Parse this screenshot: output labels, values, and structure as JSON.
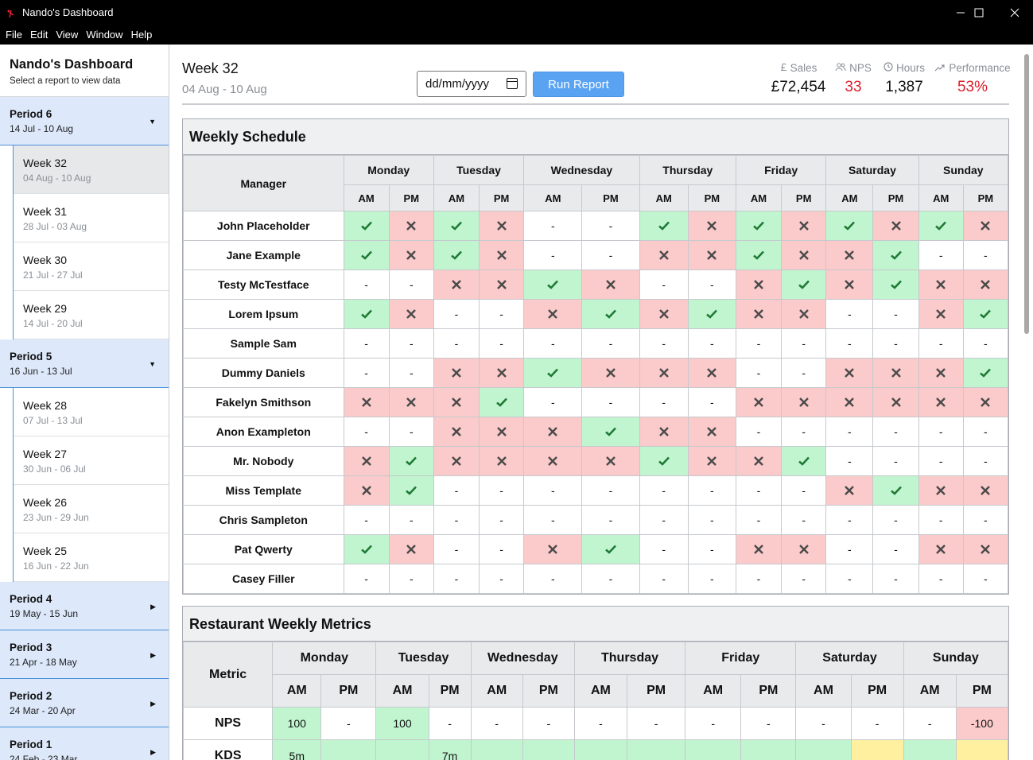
{
  "app": {
    "title": "Nando's Dashboard",
    "menu": [
      "File",
      "Edit",
      "View",
      "Window",
      "Help"
    ]
  },
  "sidebar": {
    "title": "Nando's Dashboard",
    "subtitle": "Select a report to view data",
    "periods": [
      {
        "name": "Period 6",
        "dates": "14 Jul - 10 Aug",
        "expanded": true,
        "weeks": [
          {
            "name": "Week 32",
            "dates": "04 Aug - 10 Aug",
            "active": true
          },
          {
            "name": "Week 31",
            "dates": "28 Jul - 03 Aug"
          },
          {
            "name": "Week 30",
            "dates": "21 Jul - 27 Jul"
          },
          {
            "name": "Week 29",
            "dates": "14 Jul - 20 Jul"
          }
        ]
      },
      {
        "name": "Period 5",
        "dates": "16 Jun - 13 Jul",
        "expanded": true,
        "weeks": [
          {
            "name": "Week 28",
            "dates": "07 Jul - 13 Jul"
          },
          {
            "name": "Week 27",
            "dates": "30 Jun - 06 Jul"
          },
          {
            "name": "Week 26",
            "dates": "23 Jun - 29 Jun"
          },
          {
            "name": "Week 25",
            "dates": "16 Jun - 22 Jun"
          }
        ]
      },
      {
        "name": "Period 4",
        "dates": "19 May - 15 Jun",
        "expanded": false,
        "weeks": []
      },
      {
        "name": "Period 3",
        "dates": "21 Apr - 18 May",
        "expanded": false,
        "weeks": []
      },
      {
        "name": "Period 2",
        "dates": "24 Mar - 20 Apr",
        "expanded": false,
        "weeks": []
      },
      {
        "name": "Period 1",
        "dates": "24 Feb - 23 Mar",
        "expanded": false,
        "weeks": []
      }
    ]
  },
  "header": {
    "week": "Week 32",
    "range": "04 Aug - 10 Aug",
    "date_placeholder": "dd/mm/yyyy",
    "run_label": "Run Report",
    "stats": [
      {
        "label": "Sales",
        "value": "£72,454",
        "color": "#111111",
        "icon": "pound-icon"
      },
      {
        "label": "NPS",
        "value": "33",
        "color": "#dc1f2b",
        "icon": "users-icon"
      },
      {
        "label": "Hours",
        "value": "1,387",
        "color": "#111111",
        "icon": "clock-icon"
      },
      {
        "label": "Performance",
        "value": "53%",
        "color": "#dc1f2b",
        "icon": "trend-icon"
      }
    ]
  },
  "schedule": {
    "title": "Weekly Schedule",
    "manager_header": "Manager",
    "days": [
      "Monday",
      "Tuesday",
      "Wednesday",
      "Thursday",
      "Friday",
      "Saturday",
      "Sunday"
    ],
    "am": "AM",
    "pm": "PM",
    "dash": "-",
    "rows": [
      {
        "name": "John Placeholder",
        "cells": [
          "y",
          "n",
          "y",
          "n",
          "-",
          "-",
          "y",
          "n",
          "y",
          "n",
          "y",
          "n",
          "y",
          "n"
        ]
      },
      {
        "name": "Jane Example",
        "cells": [
          "y",
          "n",
          "y",
          "n",
          "-",
          "-",
          "n",
          "n",
          "y",
          "n",
          "n",
          "y",
          "-",
          "-"
        ]
      },
      {
        "name": "Testy McTestface",
        "cells": [
          "-",
          "-",
          "n",
          "n",
          "y",
          "n",
          "-",
          "-",
          "n",
          "y",
          "n",
          "y",
          "n",
          "n"
        ]
      },
      {
        "name": "Lorem Ipsum",
        "cells": [
          "y",
          "n",
          "-",
          "-",
          "n",
          "y",
          "n",
          "y",
          "n",
          "n",
          "-",
          "-",
          "n",
          "y"
        ]
      },
      {
        "name": "Sample Sam",
        "cells": [
          "-",
          "-",
          "-",
          "-",
          "-",
          "-",
          "-",
          "-",
          "-",
          "-",
          "-",
          "-",
          "-",
          "-"
        ]
      },
      {
        "name": "Dummy Daniels",
        "cells": [
          "-",
          "-",
          "n",
          "n",
          "y",
          "n",
          "n",
          "n",
          "-",
          "-",
          "n",
          "n",
          "n",
          "y"
        ]
      },
      {
        "name": "Fakelyn Smithson",
        "cells": [
          "n",
          "n",
          "n",
          "y",
          "-",
          "-",
          "-",
          "-",
          "n",
          "n",
          "n",
          "n",
          "n",
          "n"
        ]
      },
      {
        "name": "Anon Exampleton",
        "cells": [
          "-",
          "-",
          "n",
          "n",
          "n",
          "y",
          "n",
          "n",
          "-",
          "-",
          "-",
          "-",
          "-",
          "-"
        ]
      },
      {
        "name": "Mr. Nobody",
        "cells": [
          "n",
          "y",
          "n",
          "n",
          "n",
          "n",
          "y",
          "n",
          "n",
          "y",
          "-",
          "-",
          "-",
          "-"
        ]
      },
      {
        "name": "Miss Template",
        "cells": [
          "n",
          "y",
          "-",
          "-",
          "-",
          "-",
          "-",
          "-",
          "-",
          "-",
          "n",
          "y",
          "n",
          "n"
        ]
      },
      {
        "name": "Chris Sampleton",
        "cells": [
          "-",
          "-",
          "-",
          "-",
          "-",
          "-",
          "-",
          "-",
          "-",
          "-",
          "-",
          "-",
          "-",
          "-"
        ]
      },
      {
        "name": "Pat Qwerty",
        "cells": [
          "y",
          "n",
          "-",
          "-",
          "n",
          "y",
          "-",
          "-",
          "n",
          "n",
          "-",
          "-",
          "n",
          "n"
        ]
      },
      {
        "name": "Casey Filler",
        "cells": [
          "-",
          "-",
          "-",
          "-",
          "-",
          "-",
          "-",
          "-",
          "-",
          "-",
          "-",
          "-",
          "-",
          "-"
        ]
      }
    ]
  },
  "metrics": {
    "title": "Restaurant Weekly Metrics",
    "metric_header": "Metric",
    "rows": [
      {
        "name": "NPS",
        "cells": [
          {
            "v": "100",
            "c": "g"
          },
          {
            "v": "-",
            "c": ""
          },
          {
            "v": "100",
            "c": "g"
          },
          {
            "v": "-",
            "c": ""
          },
          {
            "v": "-",
            "c": ""
          },
          {
            "v": "-",
            "c": ""
          },
          {
            "v": "-",
            "c": ""
          },
          {
            "v": "-",
            "c": ""
          },
          {
            "v": "-",
            "c": ""
          },
          {
            "v": "-",
            "c": ""
          },
          {
            "v": "-",
            "c": ""
          },
          {
            "v": "-",
            "c": ""
          },
          {
            "v": "-",
            "c": ""
          },
          {
            "v": "-100",
            "c": "r"
          }
        ]
      },
      {
        "name": "KDS",
        "cells": [
          {
            "v": "5m",
            "c": "g"
          },
          {
            "v": "",
            "c": "g"
          },
          {
            "v": "",
            "c": "g"
          },
          {
            "v": "7m",
            "c": "g"
          },
          {
            "v": "",
            "c": "g"
          },
          {
            "v": "",
            "c": "g"
          },
          {
            "v": "",
            "c": "g"
          },
          {
            "v": "",
            "c": "g"
          },
          {
            "v": "",
            "c": "g"
          },
          {
            "v": "",
            "c": "g"
          },
          {
            "v": "",
            "c": "g"
          },
          {
            "v": "",
            "c": "y"
          },
          {
            "v": "",
            "c": "g"
          },
          {
            "v": "",
            "c": "y"
          }
        ]
      }
    ]
  }
}
